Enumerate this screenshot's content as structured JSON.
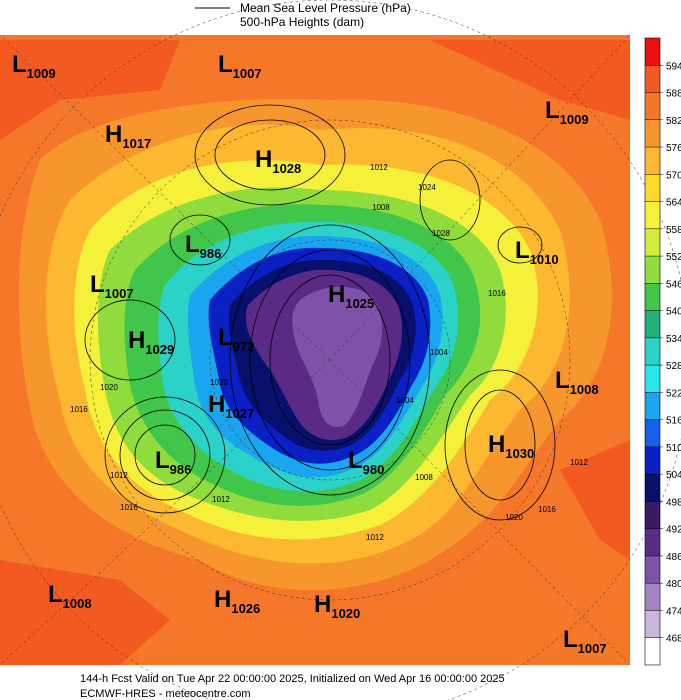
{
  "legend": {
    "line_label": "Mean Sea Level Pressure (hPa)",
    "fill_label": "500-hPa Heights (dam)"
  },
  "systems": [
    {
      "type": "L",
      "value": "1009"
    },
    {
      "type": "L",
      "value": "1007"
    },
    {
      "type": "H",
      "value": "1017"
    },
    {
      "type": "H",
      "value": "1028"
    },
    {
      "type": "L",
      "value": "1009"
    },
    {
      "type": "L",
      "value": "986"
    },
    {
      "type": "L",
      "value": "1010"
    },
    {
      "type": "L",
      "value": "1007"
    },
    {
      "type": "H",
      "value": "1025"
    },
    {
      "type": "L",
      "value": "972"
    },
    {
      "type": "H",
      "value": "1029"
    },
    {
      "type": "L",
      "value": "1008"
    },
    {
      "type": "H",
      "value": "1027"
    },
    {
      "type": "H",
      "value": "1030"
    },
    {
      "type": "L",
      "value": "986"
    },
    {
      "type": "L",
      "value": "980"
    },
    {
      "type": "L",
      "value": "1008"
    },
    {
      "type": "H",
      "value": "1026"
    },
    {
      "type": "H",
      "value": "1020"
    },
    {
      "type": "L",
      "value": "1007"
    }
  ],
  "contour_labels": [
    "1020",
    "1016",
    "1012",
    "1024",
    "1028",
    "1016",
    "1012",
    "1008",
    "1004",
    "1020",
    "1016",
    "1012",
    "1004",
    "1008",
    "1012",
    "1020",
    "1016",
    "1012"
  ],
  "colorbar": {
    "levels": [
      594,
      588,
      582,
      576,
      570,
      564,
      558,
      552,
      546,
      540,
      534,
      528,
      522,
      516,
      510,
      504,
      498,
      492,
      486,
      480,
      474,
      468
    ],
    "colors": [
      "#ee1010",
      "#f25a22",
      "#f5782a",
      "#f8962e",
      "#fbb830",
      "#ffd92a",
      "#f5f03a",
      "#d3eb3a",
      "#8fdc3c",
      "#40c64a",
      "#20b07a",
      "#2ad2c8",
      "#28e8ee",
      "#1aa6ee",
      "#1460e6",
      "#0a1fc4",
      "#08106e",
      "#3a1a62",
      "#5a2a86",
      "#7e52a8",
      "#a286c4",
      "#c8b6dc",
      "#ffffff"
    ]
  },
  "footer": {
    "line1": "144-h Fcst Valid on Tue Apr 22 00:00:00 2025, Initialized on Wed Apr 16 00:00:00 2025",
    "line2": "ECMWF-HRES  - meteocentre.com"
  }
}
